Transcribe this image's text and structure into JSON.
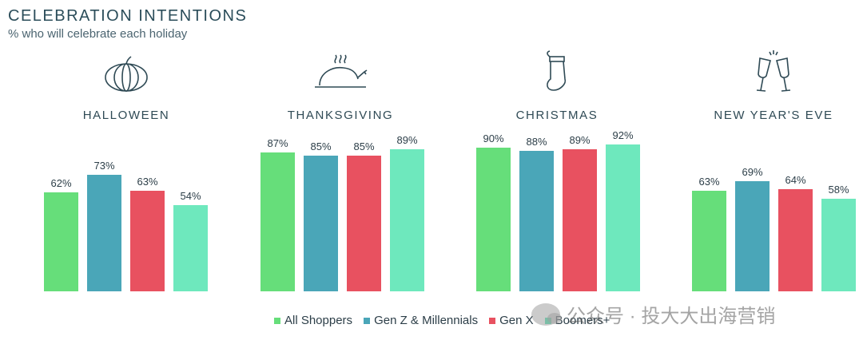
{
  "header": {
    "title": "CELEBRATION INTENTIONS",
    "subtitle": "% who will celebrate each holiday"
  },
  "colors": {
    "all_shoppers": "#66de7a",
    "gen_z_millennials": "#4aa6b8",
    "gen_x": "#e85160",
    "boomers": "#6ee8bd"
  },
  "legend": [
    {
      "label": "All Shoppers",
      "color": "#66de7a"
    },
    {
      "label": "Gen Z & Millennials",
      "color": "#4aa6b8"
    },
    {
      "label": "Gen X",
      "color": "#e85160"
    },
    {
      "label": "Boomers+",
      "color": "#6ee8bd"
    }
  ],
  "watermark": {
    "text": "公众号 · 投大大出海营销"
  },
  "chart_data": {
    "type": "bar",
    "title": "CELEBRATION INTENTIONS",
    "subtitle": "% who will celebrate each holiday",
    "categories": [
      "HALLOWEEN",
      "THANKSGIVING",
      "CHRISTMAS",
      "NEW YEAR'S EVE"
    ],
    "icons": [
      "pumpkin-icon",
      "turkey-icon",
      "stocking-icon",
      "champagne-icon"
    ],
    "series": [
      {
        "name": "All Shoppers",
        "values": [
          62,
          87,
          90,
          63
        ],
        "color": "#66de7a"
      },
      {
        "name": "Gen Z & Millennials",
        "values": [
          73,
          85,
          88,
          69
        ],
        "color": "#4aa6b8"
      },
      {
        "name": "Gen X",
        "values": [
          63,
          85,
          89,
          64
        ],
        "color": "#e85160"
      },
      {
        "name": "Boomers+",
        "values": [
          54,
          89,
          92,
          58
        ],
        "color": "#6ee8bd"
      }
    ],
    "value_suffix": "%",
    "ylim": [
      0,
      100
    ],
    "grid": false,
    "legend_position": "bottom"
  }
}
